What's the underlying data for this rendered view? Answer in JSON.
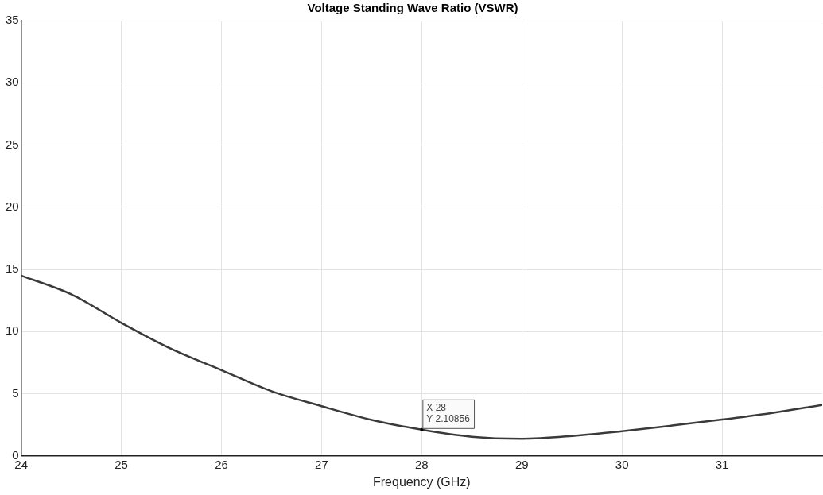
{
  "chart_data": {
    "type": "line",
    "title": "Voltage Standing Wave Ratio (VSWR)",
    "xlabel": "Frequency (GHz)",
    "x": [
      24,
      24.5,
      25,
      25.5,
      26,
      26.5,
      27,
      27.5,
      28,
      28.5,
      29,
      29.5,
      30,
      30.5,
      31,
      31.5,
      32
    ],
    "series": [
      {
        "color": "#3a3a3a",
        "values": [
          14.5,
          13.0,
          10.7,
          8.6,
          6.9,
          5.2,
          4.0,
          2.9,
          2.10856,
          1.54,
          1.38,
          1.6,
          1.99,
          2.44,
          2.92,
          3.46,
          4.1
        ]
      }
    ],
    "xlim": [
      24,
      32
    ],
    "xticks": [
      24,
      25,
      26,
      27,
      28,
      29,
      30,
      31
    ],
    "ylim": [
      0,
      35
    ],
    "yticks": [
      0,
      5,
      10,
      15,
      20,
      25,
      30,
      35
    ],
    "grid": true,
    "legend": false,
    "marker": "none",
    "line_style": "solid",
    "annotations": [
      {
        "text": "X 28\nY 2.10856",
        "x": 28,
        "y": 2.10856
      }
    ]
  }
}
